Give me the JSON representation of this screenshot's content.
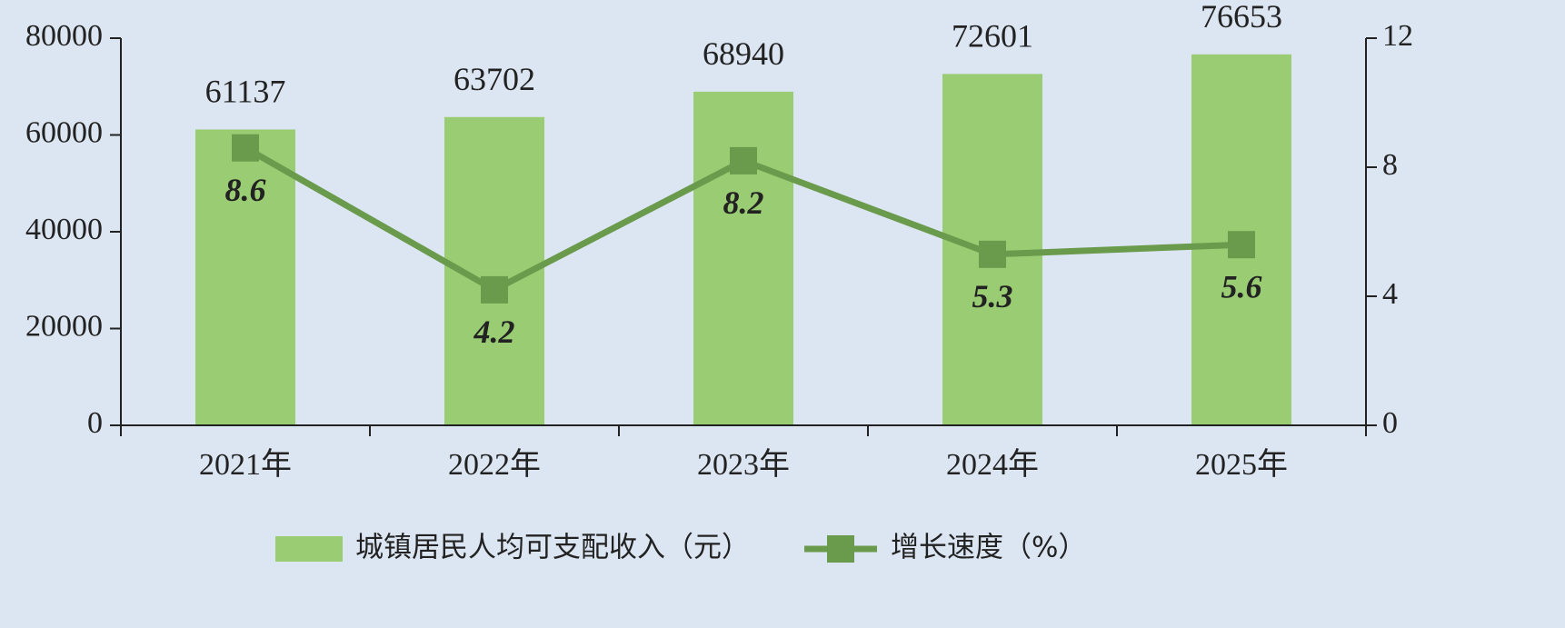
{
  "chart_data": {
    "type": "bar",
    "categories": [
      "2021年",
      "2022年",
      "2023年",
      "2024年",
      "2025年"
    ],
    "series": [
      {
        "name": "城镇居民人均可支配收入（元）",
        "color": "#99cc73",
        "type": "bar",
        "values": [
          61137,
          63702,
          68940,
          72601,
          76653
        ]
      },
      {
        "name": "增长速度（%）",
        "color": "#6a9a4c",
        "type": "line",
        "axis": "y2",
        "values": [
          8.6,
          4.2,
          8.2,
          5.3,
          5.6
        ]
      }
    ],
    "ylim": [
      0,
      80000
    ],
    "yticks": [
      0,
      20000,
      40000,
      60000,
      80000
    ],
    "y2lim": [
      0,
      12
    ],
    "y2ticks": [
      0,
      4,
      8,
      12
    ]
  }
}
